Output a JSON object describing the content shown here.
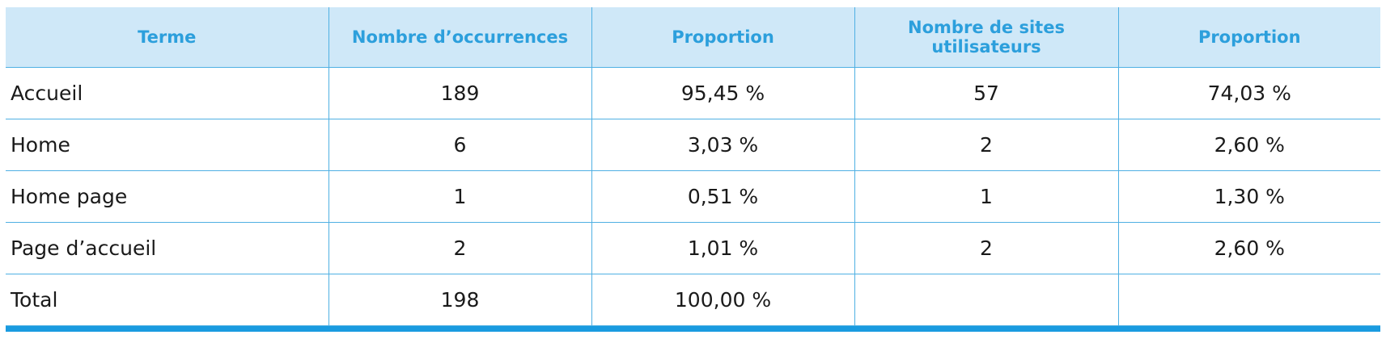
{
  "table": {
    "header": [
      "Terme",
      "Nombre d’occurrences",
      "Proportion",
      "Nombre de sites utilisateurs",
      "Proportion"
    ],
    "rows": [
      [
        "Accueil",
        "189",
        "95,45 %",
        "57",
        "74,03 %"
      ],
      [
        "Home",
        "6",
        "3,03 %",
        "2",
        "2,60 %"
      ],
      [
        "Home page",
        "1",
        "0,51 %",
        "1",
        "1,30 %"
      ],
      [
        "Page d’accueil",
        "2",
        "1,01 %",
        "2",
        "2,60 %"
      ],
      [
        "Total",
        "198",
        "100,00 %"
      ]
    ]
  }
}
